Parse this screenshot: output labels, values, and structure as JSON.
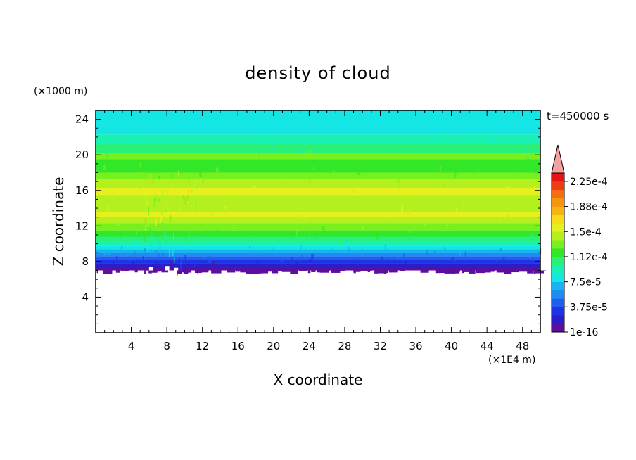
{
  "chart_data": {
    "type": "heatmap",
    "title": "density of cloud",
    "xlabel": "X coordinate",
    "ylabel": "Z coordinate",
    "x_units": "(×1E4 m)",
    "y_units": "(×1000 m)",
    "time_label": "t=450000 s",
    "xlim": [
      0,
      50
    ],
    "ylim": [
      0,
      25
    ],
    "x_ticks": [
      4,
      8,
      12,
      16,
      20,
      24,
      28,
      32,
      36,
      40,
      44,
      48
    ],
    "y_ticks": [
      4,
      8,
      12,
      16,
      20,
      24
    ],
    "colorbar": {
      "tick_labels": [
        "1e-16",
        "3.75e-5",
        "7.5e-5",
        "1.12e-4",
        "1.5e-4",
        "1.88e-4",
        "2.25e-4"
      ],
      "level_colors": [
        "#5a0fa0",
        "#2a1ec8",
        "#1e32e6",
        "#1e5ff0",
        "#1e8cf0",
        "#19b4f0",
        "#14e6e6",
        "#19f0b4",
        "#28f078",
        "#32e628",
        "#78f01e",
        "#b4f01e",
        "#e6f01e",
        "#f5dc14",
        "#f5b40f",
        "#f5960f",
        "#f56e0f",
        "#f03c14",
        "#e61414"
      ],
      "extend_color": "#f4a0a0"
    },
    "profile": {
      "z": [
        7,
        7.4,
        7.8,
        8.2,
        8.6,
        9.0,
        9.4,
        9.8,
        10.3,
        10.8,
        11.5,
        12.3,
        13.0,
        13.6,
        15.5,
        16.3,
        17.3,
        18.0,
        19.5,
        20.2,
        21.2,
        22.3,
        23.5,
        25
      ],
      "level_index": [
        0,
        1,
        2,
        3,
        4,
        5,
        6,
        7,
        8,
        9,
        10,
        11,
        12,
        11,
        12,
        11,
        10,
        9,
        10,
        8,
        7,
        6,
        6,
        5
      ]
    },
    "cloud_base_z": 7
  }
}
